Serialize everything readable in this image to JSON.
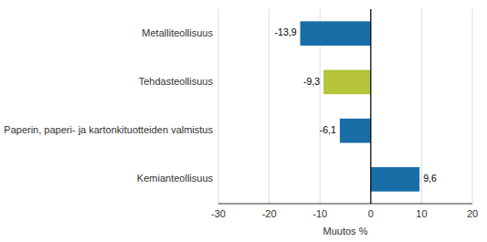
{
  "chart_data": {
    "type": "bar",
    "orientation": "horizontal",
    "categories": [
      "Kemianteollisuus",
      "Paperin, paperi- ja kartonkituotteiden valmistus",
      "Tehdasteollisuus",
      "Metalliteollisuus"
    ],
    "values": [
      9.6,
      -6.1,
      -9.3,
      -13.9
    ],
    "value_labels": [
      "9,6",
      "-6,1",
      "-9,3",
      "-13,9"
    ],
    "data_labels": true,
    "colors": [
      "#1a6ea8",
      "#1a6ea8",
      "#b5c43a",
      "#1a6ea8"
    ],
    "xlabel": "Muutos %",
    "xlim": [
      -30,
      20
    ],
    "xticks": [
      -30,
      -20,
      -10,
      0,
      10,
      20
    ],
    "grid": true
  }
}
